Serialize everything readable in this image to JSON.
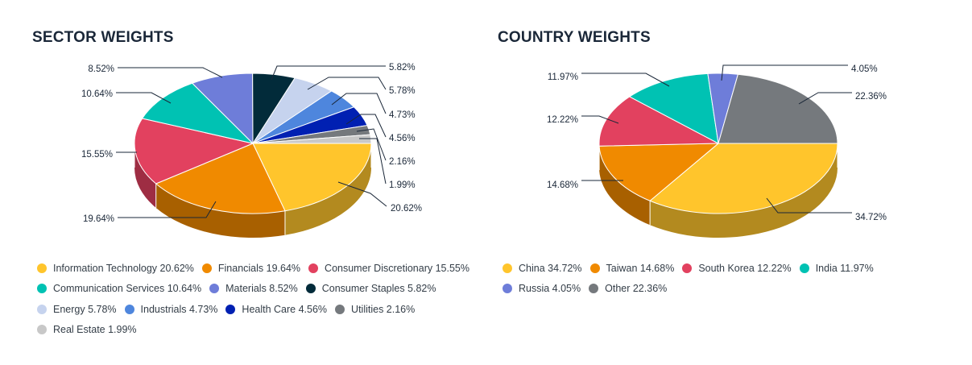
{
  "chart_data": [
    {
      "type": "pie",
      "title": "SECTOR WEIGHTS",
      "slices": [
        {
          "label": "Information Technology",
          "value": 20.62,
          "value_label": "20.62%",
          "color": "#FFC52C",
          "side": "#B38A1F"
        },
        {
          "label": "Financials",
          "value": 19.64,
          "value_label": "19.64%",
          "color": "#F08A00",
          "side": "#A86000"
        },
        {
          "label": "Consumer Discretionary",
          "value": 15.55,
          "value_label": "15.55%",
          "color": "#E2415F",
          "side": "#9E2D43"
        },
        {
          "label": "Communication Services",
          "value": 10.64,
          "value_label": "10.64%",
          "color": "#00C2B3",
          "side": "#00887D"
        },
        {
          "label": "Materials",
          "value": 8.52,
          "value_label": "8.52%",
          "color": "#6E7DD9",
          "side": "#4D5898"
        },
        {
          "label": "Consumer Staples",
          "value": 5.82,
          "value_label": "5.82%",
          "color": "#022B3A",
          "side": "#011E29"
        },
        {
          "label": "Energy",
          "value": 5.78,
          "value_label": "5.78%",
          "color": "#C6D3EE",
          "side": "#8B94A7"
        },
        {
          "label": "Industrials",
          "value": 4.73,
          "value_label": "4.73%",
          "color": "#4E86DD",
          "side": "#375E9B"
        },
        {
          "label": "Health Care",
          "value": 4.56,
          "value_label": "4.56%",
          "color": "#0020B2",
          "side": "#00167D"
        },
        {
          "label": "Utilities",
          "value": 2.16,
          "value_label": "2.16%",
          "color": "#75797D",
          "side": "#525558"
        },
        {
          "label": "Real Estate",
          "value": 1.99,
          "value_label": "1.99%",
          "color": "#C8C8C8",
          "side": "#8C8C8C"
        }
      ],
      "legend_rows": [
        [
          0,
          1,
          2
        ],
        [
          3,
          4,
          5
        ],
        [
          6,
          7,
          8,
          9
        ],
        [
          10
        ]
      ]
    },
    {
      "type": "pie",
      "title": "COUNTRY WEIGHTS",
      "slices": [
        {
          "label": "China",
          "value": 34.72,
          "value_label": "34.72%",
          "color": "#FFC52C",
          "side": "#B38A1F"
        },
        {
          "label": "Taiwan",
          "value": 14.68,
          "value_label": "14.68%",
          "color": "#F08A00",
          "side": "#A86000"
        },
        {
          "label": "South Korea",
          "value": 12.22,
          "value_label": "12.22%",
          "color": "#E2415F",
          "side": "#9E2D43"
        },
        {
          "label": "India",
          "value": 11.97,
          "value_label": "11.97%",
          "color": "#00C2B3",
          "side": "#00887D"
        },
        {
          "label": "Russia",
          "value": 4.05,
          "value_label": "4.05%",
          "color": "#6E7DD9",
          "side": "#4D5898"
        },
        {
          "label": "Other",
          "value": 22.36,
          "value_label": "22.36%",
          "color": "#75797D",
          "side": "#525558"
        }
      ],
      "legend_rows": [
        [
          0,
          1,
          2,
          3
        ],
        [
          4,
          5
        ]
      ]
    }
  ]
}
